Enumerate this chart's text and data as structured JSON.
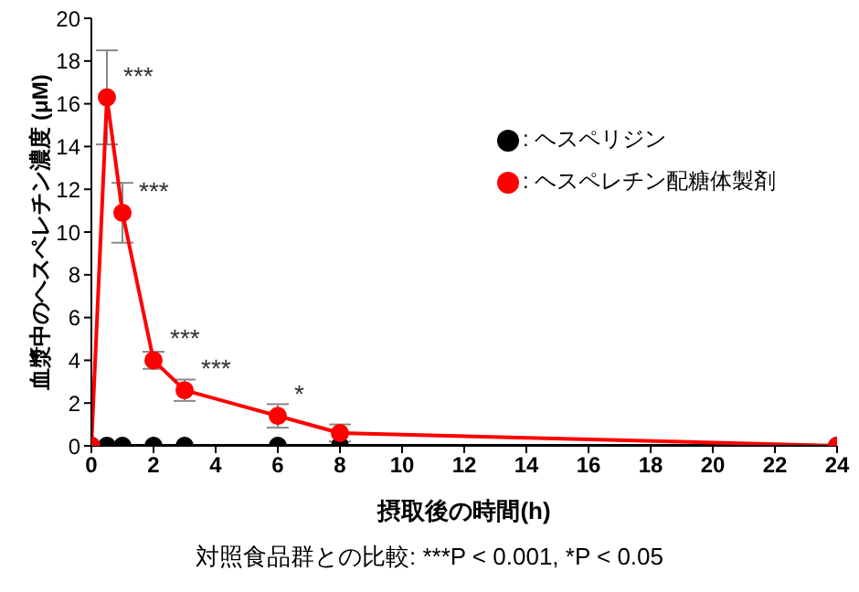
{
  "chart_data": {
    "type": "line",
    "xlabel": "摂取後の時間(h)",
    "ylabel": "血漿中のヘスペレチン濃度 (μM)",
    "x": [
      0,
      0.5,
      1,
      2,
      3,
      6,
      8,
      24
    ],
    "series": [
      {
        "name": ": ヘスペリジン",
        "color": "#000000",
        "values": [
          0,
          0,
          0,
          0,
          0,
          0,
          0,
          0
        ]
      },
      {
        "name": ": ヘスペレチン配糖体製剤",
        "color": "#ff0000",
        "values": [
          0,
          16.3,
          10.9,
          4.0,
          2.6,
          1.4,
          0.6,
          0
        ],
        "errors": [
          null,
          2.2,
          1.4,
          0.4,
          0.5,
          0.55,
          0.4,
          null
        ]
      }
    ],
    "xlim": [
      0,
      24
    ],
    "xticks": [
      0,
      2,
      4,
      6,
      8,
      10,
      12,
      14,
      16,
      18,
      20,
      22,
      24
    ],
    "ylim": [
      0,
      20
    ],
    "yticks": [
      0,
      2,
      4,
      6,
      8,
      10,
      12,
      14,
      16,
      18,
      20
    ],
    "grid": false,
    "legend": "top right",
    "marker": "circle",
    "line_style": "solid",
    "annotations": [
      {
        "text": "***",
        "x": 0.5,
        "y": 16.3
      },
      {
        "text": "***",
        "x": 1,
        "y": 10.9
      },
      {
        "text": "***",
        "x": 2,
        "y": 4.0
      },
      {
        "text": "***",
        "x": 3,
        "y": 2.6
      },
      {
        "text": "*",
        "x": 6,
        "y": 1.4
      },
      "対照食品群との比較: ***P < 0.001, *P < 0.05"
    ]
  }
}
